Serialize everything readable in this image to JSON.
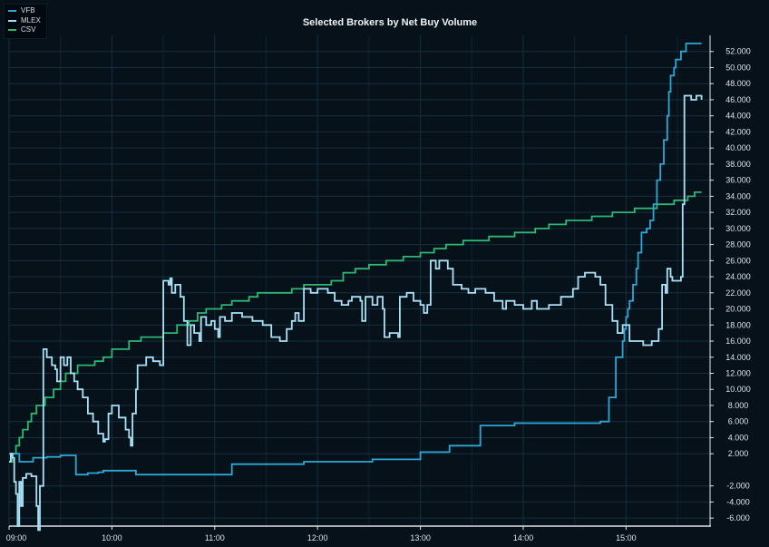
{
  "chart_data": {
    "type": "line",
    "title": "Selected Brokers by Net Buy Volume",
    "xlabel": "",
    "ylabel": "",
    "x_tick_labels": [
      "09:00",
      "10:00",
      "11:00",
      "12:00",
      "13:00",
      "14:00",
      "15:00"
    ],
    "y_tick_labels": [
      "-6.000",
      "-4.000",
      "-2.000",
      "2.000",
      "4.000",
      "6.000",
      "8.000",
      "10.000",
      "12.000",
      "14.000",
      "16.000",
      "18.000",
      "20.000",
      "22.000",
      "24.000",
      "26.000",
      "28.000",
      "30.000",
      "32.000",
      "34.000",
      "36.000",
      "38.000",
      "40.000",
      "42.000",
      "44.000",
      "46.000",
      "48.000",
      "50.000",
      "52.000"
    ],
    "xlim": [
      "09:00",
      "15:49"
    ],
    "ylim": [
      -7000,
      54000
    ],
    "grid": true,
    "legend_position": "top-left",
    "colors": {
      "background": "#06111a",
      "grid": "#16303f",
      "axis": "#e0e6ea"
    },
    "series": [
      {
        "name": "VFB",
        "color": "#2fa7d6",
        "points": [
          [
            "09:00",
            2000
          ],
          [
            "09:05",
            2000
          ],
          [
            "09:06",
            1000
          ],
          [
            "09:13",
            1000
          ],
          [
            "09:14",
            1500
          ],
          [
            "09:22",
            1600
          ],
          [
            "09:30",
            1800
          ],
          [
            "09:38",
            1800
          ],
          [
            "09:39",
            -600
          ],
          [
            "09:45",
            -600
          ],
          [
            "09:46",
            -400
          ],
          [
            "09:52",
            -300
          ],
          [
            "09:55",
            -100
          ],
          [
            "10:13",
            -100
          ],
          [
            "10:14",
            -600
          ],
          [
            "10:40",
            -600
          ],
          [
            "10:48",
            -600
          ],
          [
            "11:09",
            -600
          ],
          [
            "11:10",
            700
          ],
          [
            "11:50",
            700
          ],
          [
            "11:52",
            1000
          ],
          [
            "12:30",
            1000
          ],
          [
            "12:32",
            1300
          ],
          [
            "12:58",
            1300
          ],
          [
            "13:00",
            2200
          ],
          [
            "13:14",
            2200
          ],
          [
            "13:17",
            3000
          ],
          [
            "13:33",
            3000
          ],
          [
            "13:35",
            5500
          ],
          [
            "13:38",
            5500
          ],
          [
            "13:52",
            5500
          ],
          [
            "13:55",
            5800
          ],
          [
            "14:44",
            5800
          ],
          [
            "14:45",
            6000
          ],
          [
            "14:49",
            6000
          ],
          [
            "14:50",
            9000
          ],
          [
            "14:53",
            9000
          ],
          [
            "14:54",
            14000
          ],
          [
            "14:57",
            14000
          ],
          [
            "14:58",
            16000
          ],
          [
            "14:59",
            17500
          ],
          [
            "15:00",
            19000
          ],
          [
            "15:01",
            20000
          ],
          [
            "15:02",
            21000
          ],
          [
            "15:04",
            23000
          ],
          [
            "15:06",
            25000
          ],
          [
            "15:07",
            27000
          ],
          [
            "15:09",
            29500
          ],
          [
            "15:12",
            30000
          ],
          [
            "15:14",
            31000
          ],
          [
            "15:16",
            33000
          ],
          [
            "15:18",
            36000
          ],
          [
            "15:20",
            38000
          ],
          [
            "15:22",
            41000
          ],
          [
            "15:24",
            44000
          ],
          [
            "15:25",
            47000
          ],
          [
            "15:26",
            49000
          ],
          [
            "15:28",
            50000
          ],
          [
            "15:29",
            51000
          ],
          [
            "15:32",
            52000
          ],
          [
            "15:35",
            53000
          ],
          [
            "15:44",
            53000
          ]
        ]
      },
      {
        "name": "MLEX",
        "color": "#a9e1f7",
        "points": [
          [
            "09:00",
            1000
          ],
          [
            "09:01",
            2000
          ],
          [
            "09:02",
            1500
          ],
          [
            "09:03",
            -1500
          ],
          [
            "09:04",
            -3000
          ],
          [
            "09:05",
            -7000
          ],
          [
            "09:06",
            -1500
          ],
          [
            "09:07",
            -4500
          ],
          [
            "09:08",
            -1000
          ],
          [
            "09:10",
            -500
          ],
          [
            "09:13",
            -800
          ],
          [
            "09:16",
            -4500
          ],
          [
            "09:17",
            -7500
          ],
          [
            "09:18",
            -2000
          ],
          [
            "09:20",
            15000
          ],
          [
            "09:22",
            14000
          ],
          [
            "09:25",
            13000
          ],
          [
            "09:27",
            12500
          ],
          [
            "09:28",
            11000
          ],
          [
            "09:30",
            14000
          ],
          [
            "09:32",
            13000
          ],
          [
            "09:34",
            14000
          ],
          [
            "09:36",
            12000
          ],
          [
            "09:38",
            11000
          ],
          [
            "09:40",
            10000
          ],
          [
            "09:43",
            9000
          ],
          [
            "09:46",
            7000
          ],
          [
            "09:49",
            6000
          ],
          [
            "09:52",
            4500
          ],
          [
            "09:55",
            3500
          ],
          [
            "09:56",
            3800
          ],
          [
            "09:58",
            7000
          ],
          [
            "10:00",
            8000
          ],
          [
            "10:04",
            6500
          ],
          [
            "10:08",
            5000
          ],
          [
            "10:10",
            4000
          ],
          [
            "10:11",
            3000
          ],
          [
            "10:12",
            7000
          ],
          [
            "10:14",
            10000
          ],
          [
            "10:15",
            13000
          ],
          [
            "10:20",
            14000
          ],
          [
            "10:24",
            13500
          ],
          [
            "10:28",
            13000
          ],
          [
            "10:30",
            23500
          ],
          [
            "10:33",
            23000
          ],
          [
            "10:34",
            23800
          ],
          [
            "10:35",
            22000
          ],
          [
            "10:37",
            23000
          ],
          [
            "10:40",
            21500
          ],
          [
            "10:42",
            18500
          ],
          [
            "10:44",
            15500
          ],
          [
            "10:46",
            18000
          ],
          [
            "10:48",
            17000
          ],
          [
            "10:51",
            16000
          ],
          [
            "10:52",
            19000
          ],
          [
            "10:55",
            18000
          ],
          [
            "10:58",
            18500
          ],
          [
            "11:00",
            17500
          ],
          [
            "11:02",
            16500
          ],
          [
            "11:03",
            19000
          ],
          [
            "11:06",
            18500
          ],
          [
            "11:10",
            19500
          ],
          [
            "11:16",
            19000
          ],
          [
            "11:22",
            18500
          ],
          [
            "11:28",
            18000
          ],
          [
            "11:33",
            16500
          ],
          [
            "11:38",
            16000
          ],
          [
            "11:42",
            17500
          ],
          [
            "11:45",
            18500
          ],
          [
            "11:47",
            19500
          ],
          [
            "11:49",
            18500
          ],
          [
            "11:52",
            22500
          ],
          [
            "11:56",
            22000
          ],
          [
            "12:00",
            22500
          ],
          [
            "12:06",
            22000
          ],
          [
            "12:10",
            21000
          ],
          [
            "12:14",
            20500
          ],
          [
            "12:18",
            21000
          ],
          [
            "12:20",
            21500
          ],
          [
            "12:25",
            21000
          ],
          [
            "12:26",
            18500
          ],
          [
            "12:28",
            21500
          ],
          [
            "12:32",
            20500
          ],
          [
            "12:35",
            21500
          ],
          [
            "12:38",
            20000
          ],
          [
            "12:39",
            16500
          ],
          [
            "12:42",
            17000
          ],
          [
            "12:47",
            16500
          ],
          [
            "12:48",
            21500
          ],
          [
            "12:52",
            22000
          ],
          [
            "12:56",
            21000
          ],
          [
            "13:00",
            20500
          ],
          [
            "13:02",
            19500
          ],
          [
            "13:04",
            20500
          ],
          [
            "13:06",
            26000
          ],
          [
            "13:09",
            25000
          ],
          [
            "13:11",
            26000
          ],
          [
            "13:16",
            25000
          ],
          [
            "13:19",
            23000
          ],
          [
            "13:24",
            22500
          ],
          [
            "13:28",
            22000
          ],
          [
            "13:32",
            22500
          ],
          [
            "13:38",
            22000
          ],
          [
            "13:43",
            21000
          ],
          [
            "13:48",
            20000
          ],
          [
            "13:50",
            21000
          ],
          [
            "13:55",
            20500
          ],
          [
            "14:00",
            20000
          ],
          [
            "14:05",
            21000
          ],
          [
            "14:08",
            20000
          ],
          [
            "14:15",
            20500
          ],
          [
            "14:22",
            21500
          ],
          [
            "14:29",
            22500
          ],
          [
            "14:32",
            24000
          ],
          [
            "14:36",
            24500
          ],
          [
            "14:42",
            24000
          ],
          [
            "14:45",
            23000
          ],
          [
            "14:48",
            20500
          ],
          [
            "14:52",
            18500
          ],
          [
            "14:55",
            17000
          ],
          [
            "14:58",
            18000
          ],
          [
            "15:02",
            16000
          ],
          [
            "15:10",
            15500
          ],
          [
            "15:15",
            16000
          ],
          [
            "15:19",
            17500
          ],
          [
            "15:21",
            23000
          ],
          [
            "15:23",
            22000
          ],
          [
            "15:24",
            25000
          ],
          [
            "15:26",
            24000
          ],
          [
            "15:27",
            23500
          ],
          [
            "15:32",
            24000
          ],
          [
            "15:33",
            33000
          ],
          [
            "15:34",
            46500
          ],
          [
            "15:38",
            46000
          ],
          [
            "15:41",
            46500
          ],
          [
            "15:44",
            46000
          ]
        ]
      },
      {
        "name": "CSV",
        "color": "#2eb673",
        "points": [
          [
            "09:00",
            1000
          ],
          [
            "09:02",
            2000
          ],
          [
            "09:04",
            3000
          ],
          [
            "09:06",
            4000
          ],
          [
            "09:08",
            5000
          ],
          [
            "09:11",
            6000
          ],
          [
            "09:13",
            7000
          ],
          [
            "09:16",
            8000
          ],
          [
            "09:21",
            9000
          ],
          [
            "09:26",
            10000
          ],
          [
            "09:30",
            11000
          ],
          [
            "09:33",
            12000
          ],
          [
            "09:40",
            13000
          ],
          [
            "09:50",
            13500
          ],
          [
            "09:55",
            14000
          ],
          [
            "10:00",
            15000
          ],
          [
            "10:10",
            16000
          ],
          [
            "10:17",
            16500
          ],
          [
            "10:30",
            17000
          ],
          [
            "10:38",
            18000
          ],
          [
            "10:45",
            18500
          ],
          [
            "10:50",
            19500
          ],
          [
            "10:55",
            20000
          ],
          [
            "11:04",
            20500
          ],
          [
            "11:10",
            21000
          ],
          [
            "11:20",
            21500
          ],
          [
            "11:25",
            22000
          ],
          [
            "11:45",
            22500
          ],
          [
            "11:52",
            23000
          ],
          [
            "12:08",
            23500
          ],
          [
            "12:15",
            24500
          ],
          [
            "12:22",
            25000
          ],
          [
            "12:30",
            25500
          ],
          [
            "12:40",
            26000
          ],
          [
            "12:50",
            26500
          ],
          [
            "13:00",
            27000
          ],
          [
            "13:08",
            27500
          ],
          [
            "13:15",
            28000
          ],
          [
            "13:25",
            28500
          ],
          [
            "13:40",
            29000
          ],
          [
            "13:55",
            29500
          ],
          [
            "14:07",
            30000
          ],
          [
            "14:15",
            30500
          ],
          [
            "14:25",
            31000
          ],
          [
            "14:40",
            31500
          ],
          [
            "14:52",
            32000
          ],
          [
            "15:05",
            32500
          ],
          [
            "15:18",
            33000
          ],
          [
            "15:28",
            33500
          ],
          [
            "15:36",
            34000
          ],
          [
            "15:40",
            34500
          ],
          [
            "15:44",
            34500
          ]
        ]
      }
    ]
  }
}
